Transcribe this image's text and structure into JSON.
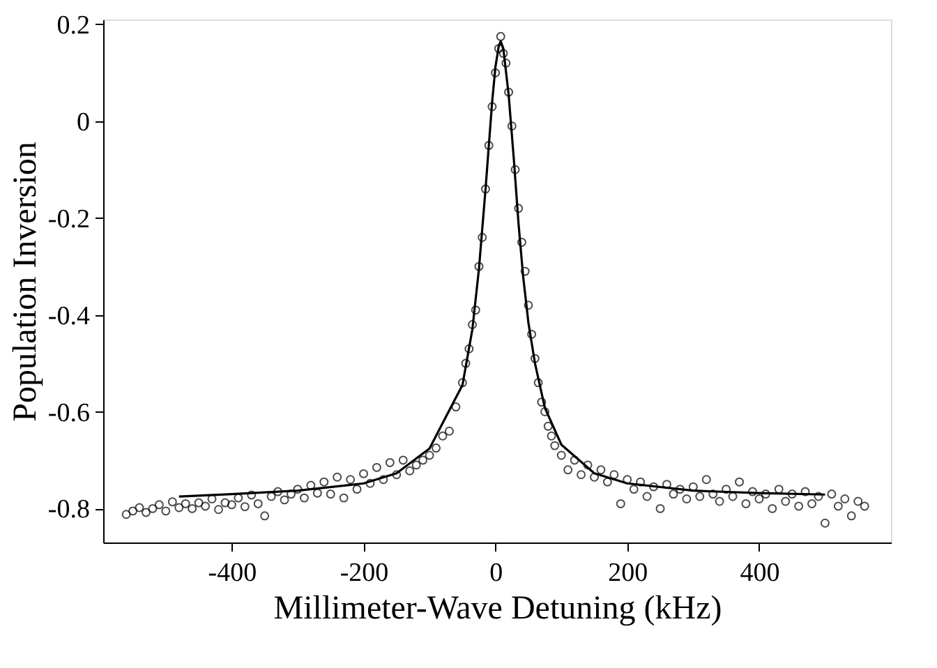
{
  "chart_data": {
    "type": "scatter",
    "xlabel": "Millimeter-Wave Detuning (kHz)",
    "ylabel": "Population Inversion",
    "xlim": [
      -595,
      600
    ],
    "xticks": [
      -400,
      -200,
      0,
      200,
      400
    ],
    "ylim": [
      -0.87,
      0.21
    ],
    "yticks": [
      -0.8,
      -0.6,
      -0.4,
      -0.2,
      0,
      0.2
    ],
    "series": [
      {
        "color": "#000000",
        "marker": "circle",
        "x": [
          -560,
          -550,
          -540,
          -530,
          -520,
          -510,
          -500,
          -490,
          -480,
          -470,
          -460,
          -450,
          -440,
          -430,
          -420,
          -410,
          -400,
          -390,
          -380,
          -370,
          -360,
          -350,
          -340,
          -330,
          -320,
          -310,
          -300,
          -290,
          -280,
          -270,
          -260,
          -250,
          -240,
          -230,
          -220,
          -210,
          -200,
          -190,
          -180,
          -170,
          -160,
          -150,
          -140,
          -130,
          -120,
          -110,
          -100,
          -90,
          -80,
          -70,
          -60,
          -50,
          -45,
          -40,
          -35,
          -30,
          -25,
          -20,
          -15,
          -10,
          -5,
          0,
          5,
          8,
          12,
          16,
          20,
          25,
          30,
          35,
          40,
          45,
          50,
          55,
          60,
          65,
          70,
          75,
          80,
          85,
          90,
          100,
          110,
          120,
          130,
          140,
          150,
          160,
          170,
          180,
          190,
          200,
          210,
          220,
          230,
          240,
          250,
          260,
          270,
          280,
          290,
          300,
          310,
          320,
          330,
          340,
          350,
          360,
          370,
          380,
          390,
          400,
          410,
          420,
          430,
          440,
          450,
          460,
          470,
          480,
          490,
          500,
          510,
          520,
          530,
          540,
          550,
          560
        ],
        "values": [
          -0.812,
          -0.805,
          -0.798,
          -0.808,
          -0.8,
          -0.792,
          -0.805,
          -0.786,
          -0.798,
          -0.79,
          -0.8,
          -0.788,
          -0.795,
          -0.78,
          -0.802,
          -0.788,
          -0.792,
          -0.778,
          -0.796,
          -0.772,
          -0.79,
          -0.815,
          -0.775,
          -0.765,
          -0.782,
          -0.77,
          -0.76,
          -0.778,
          -0.752,
          -0.768,
          -0.745,
          -0.77,
          -0.735,
          -0.778,
          -0.74,
          -0.76,
          -0.728,
          -0.748,
          -0.715,
          -0.74,
          -0.705,
          -0.73,
          -0.7,
          -0.722,
          -0.71,
          -0.7,
          -0.69,
          -0.675,
          -0.65,
          -0.64,
          -0.59,
          -0.54,
          -0.5,
          -0.47,
          -0.42,
          -0.39,
          -0.3,
          -0.24,
          -0.14,
          -0.05,
          0.03,
          0.1,
          0.15,
          0.175,
          0.14,
          0.12,
          0.06,
          -0.01,
          -0.1,
          -0.18,
          -0.25,
          -0.31,
          -0.38,
          -0.44,
          -0.49,
          -0.54,
          -0.58,
          -0.6,
          -0.63,
          -0.65,
          -0.67,
          -0.69,
          -0.72,
          -0.7,
          -0.73,
          -0.71,
          -0.735,
          -0.72,
          -0.745,
          -0.73,
          -0.79,
          -0.74,
          -0.76,
          -0.745,
          -0.775,
          -0.755,
          -0.8,
          -0.75,
          -0.77,
          -0.76,
          -0.78,
          -0.755,
          -0.775,
          -0.74,
          -0.77,
          -0.785,
          -0.76,
          -0.775,
          -0.745,
          -0.79,
          -0.765,
          -0.78,
          -0.77,
          -0.8,
          -0.76,
          -0.785,
          -0.77,
          -0.795,
          -0.765,
          -0.79,
          -0.775,
          -0.83,
          -0.77,
          -0.795,
          -0.78,
          -0.815,
          -0.785,
          -0.795
        ]
      },
      {
        "type": "line",
        "color": "#000000",
        "line_style": "solid",
        "x": [
          -480,
          -400,
          -300,
          -200,
          -150,
          -100,
          -75,
          -50,
          -35,
          -25,
          -15,
          -10,
          -5,
          0,
          5,
          8,
          12,
          20,
          28,
          35,
          42,
          50,
          60,
          75,
          100,
          150,
          200,
          300,
          400,
          500
        ],
        "values": [
          -0.775,
          -0.77,
          -0.763,
          -0.748,
          -0.727,
          -0.676,
          -0.61,
          -0.545,
          -0.43,
          -0.305,
          -0.14,
          -0.05,
          0.04,
          0.112,
          0.155,
          0.165,
          0.15,
          0.055,
          -0.08,
          -0.211,
          -0.32,
          -0.416,
          -0.5,
          -0.592,
          -0.668,
          -0.727,
          -0.748,
          -0.763,
          -0.768,
          -0.771
        ]
      }
    ]
  }
}
